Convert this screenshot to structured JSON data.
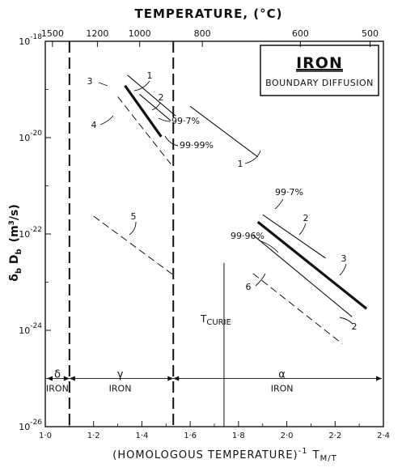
{
  "chart_data": {
    "type": "line",
    "title": "IRON",
    "subtitle": "BOUNDARY DIFFUSION",
    "top_axis": {
      "label": "TEMPERATURE, (°C)",
      "ticks": [
        {
          "label": "1500",
          "x": 1.0297
        },
        {
          "label": "1200",
          "x": 1.2157
        },
        {
          "label": "1000",
          "x": 1.3908
        },
        {
          "label": "800",
          "x": 1.6502
        },
        {
          "label": "600",
          "x": 2.0562
        },
        {
          "label": "500",
          "x": 2.3447
        }
      ]
    },
    "xlabel": "(HOMOLOGOUS TEMPERATURE)",
    "xlabel_exponent": "-1",
    "xlabel_suffix": "T",
    "xlabel_suffix_sub": "M/T",
    "ylabel": "δ",
    "ylabel_sub": "b",
    "ylabel_mid": " D",
    "ylabel_sub2": "b",
    "ylabel_unit": "(m",
    "ylabel_unit_sup": "3",
    "ylabel_unit_end": "/s)",
    "xlim": [
      1.0,
      2.4
    ],
    "ylim": [
      -26,
      -18
    ],
    "x_ticks": [
      {
        "label": "1·0",
        "v": 1.0
      },
      {
        "label": "1·2",
        "v": 1.2
      },
      {
        "label": "1·4",
        "v": 1.4
      },
      {
        "label": "1·6",
        "v": 1.6
      },
      {
        "label": "1·8",
        "v": 1.8
      },
      {
        "label": "2·0",
        "v": 2.0
      },
      {
        "label": "2·2",
        "v": 2.2
      },
      {
        "label": "2·4",
        "v": 2.4
      }
    ],
    "y_ticks": [
      {
        "base": "10",
        "exp": "-18",
        "v": -18
      },
      {
        "base": "10",
        "exp": "-20",
        "v": -20
      },
      {
        "base": "10",
        "exp": "-22",
        "v": -22
      },
      {
        "base": "10",
        "exp": "-24",
        "v": -24
      },
      {
        "base": "10",
        "exp": "-26",
        "v": -26
      }
    ],
    "phase_boundaries": [
      {
        "x": 1.1,
        "style": "dashed"
      },
      {
        "x": 1.53,
        "style": "dashed"
      },
      {
        "x": 1.74,
        "style": "solid",
        "y_from": -22.6,
        "y_to": -26
      }
    ],
    "phases": [
      {
        "symbol": "δ",
        "name": "IRON",
        "x": 1.05,
        "y": -25.1
      },
      {
        "symbol": "γ",
        "name": "IRON",
        "x": 1.31,
        "y": -25.1
      },
      {
        "symbol": "α",
        "name": "IRON",
        "x": 1.98,
        "y": -25.1
      }
    ],
    "curie_label": "T",
    "curie_sub": "CURIE",
    "series": [
      {
        "label": "1",
        "style": "thin",
        "points": [
          [
            1.34,
            -18.7
          ],
          [
            1.54,
            -19.55
          ]
        ]
      },
      {
        "label": "2",
        "style": "thin",
        "points": [
          [
            1.39,
            -19.1
          ],
          [
            1.52,
            -19.65
          ]
        ]
      },
      {
        "label": "3",
        "style": "thick",
        "points": [
          [
            1.33,
            -18.92
          ],
          [
            1.48,
            -19.98
          ]
        ]
      },
      {
        "label": "4",
        "style": "dashed",
        "points": [
          [
            1.3,
            -19.15
          ],
          [
            1.52,
            -20.55
          ]
        ]
      },
      {
        "label": "5",
        "style": "dashed",
        "points": [
          [
            1.2,
            -21.63
          ],
          [
            1.53,
            -22.85
          ]
        ]
      },
      {
        "label": "1",
        "style": "thin",
        "points": [
          [
            1.6,
            -19.35
          ],
          [
            1.88,
            -20.4
          ]
        ]
      },
      {
        "label": "2",
        "style": "thin",
        "points": [
          [
            1.9,
            -21.6
          ],
          [
            2.16,
            -22.5
          ]
        ]
      },
      {
        "label": "3",
        "style": "thick",
        "points": [
          [
            1.88,
            -21.75
          ],
          [
            2.33,
            -23.55
          ]
        ]
      },
      {
        "label": "2",
        "style": "thin",
        "points": [
          [
            1.86,
            -22.02
          ],
          [
            2.27,
            -23.72
          ]
        ]
      },
      {
        "label": "6",
        "style": "dashed",
        "points": [
          [
            1.86,
            -22.82
          ],
          [
            2.23,
            -24.28
          ]
        ]
      }
    ],
    "purity_labels": [
      "99·7%",
      "99·99%",
      "99·7%",
      "99·96%"
    ]
  }
}
